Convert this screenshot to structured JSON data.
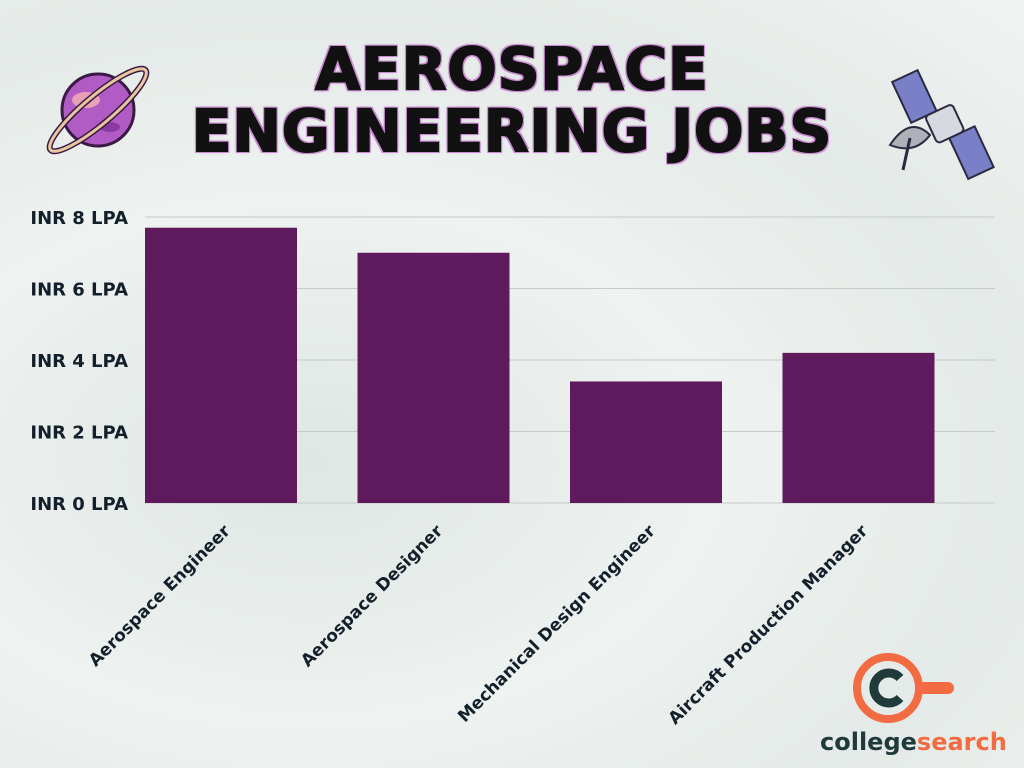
{
  "title_line1": "AEROSPACE",
  "title_line2": "ENGINEERING JOBS",
  "colors": {
    "bar": "#5f1a5e",
    "text": "#13202b",
    "grid": "#c5cbc9",
    "logo_orange": "#f26b42",
    "logo_dark": "#1e3a3a"
  },
  "icons": [
    "planet-icon",
    "satellite-icon"
  ],
  "logo": {
    "part1": "college",
    "part2": "search"
  },
  "chart_data": {
    "type": "bar",
    "title": "AEROSPACE ENGINEERING JOBS",
    "categories": [
      "Aerospace Engineer",
      "Aerospace Designer",
      "Mechanical Design Engineer",
      "Aircraft Production Manager"
    ],
    "values": [
      7.7,
      7.0,
      3.4,
      4.2
    ],
    "unit": "LPA",
    "ylim": [
      0,
      8
    ],
    "yticks": [
      0,
      2,
      4,
      6,
      8
    ],
    "ytick_labels": [
      "INR 0 LPA",
      "INR 2 LPA",
      "INR 4 LPA",
      "INR 6 LPA",
      "INR 8 LPA"
    ],
    "grid": true,
    "xlabel": "",
    "ylabel": ""
  }
}
